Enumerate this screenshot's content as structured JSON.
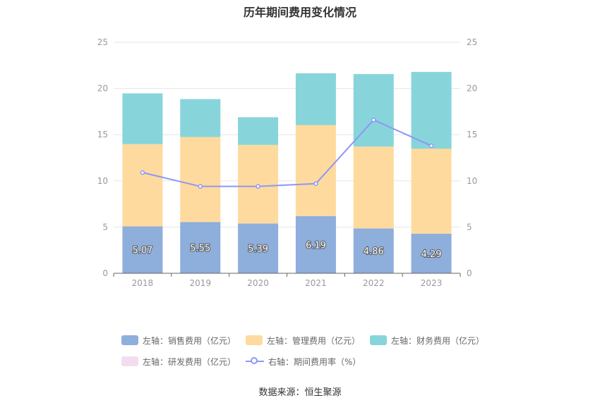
{
  "title": "历年期间费用变化情况",
  "source": "数据来源：恒生聚源",
  "chart_data": {
    "type": "bar",
    "stacked": true,
    "categories": [
      "2018",
      "2019",
      "2020",
      "2021",
      "2022",
      "2023"
    ],
    "left_axis": {
      "min": 0,
      "max": 25,
      "ticks": [
        "0",
        "5",
        "10",
        "15",
        "20",
        "25"
      ]
    },
    "right_axis": {
      "min": 0,
      "max": 25,
      "ticks": [
        "0",
        "5",
        "10",
        "15",
        "20",
        "25"
      ]
    },
    "grid": true,
    "series": [
      {
        "name": "左轴：销售费用（亿元）",
        "axis": "left",
        "kind": "bar",
        "color": "#8EAEDC",
        "values": [
          5.07,
          5.55,
          5.39,
          6.19,
          4.86,
          4.29
        ],
        "labels": [
          "5.07",
          "5.55",
          "5.39",
          "6.19",
          "4.86",
          "4.29"
        ]
      },
      {
        "name": "左轴：管理费用（亿元）",
        "axis": "left",
        "kind": "bar",
        "color": "#FFDA9E",
        "values": [
          8.9,
          9.2,
          8.5,
          9.85,
          8.85,
          9.2
        ]
      },
      {
        "name": "左轴：财务费用（亿元）",
        "axis": "left",
        "kind": "bar",
        "color": "#87D5DA",
        "values": [
          5.5,
          4.1,
          3.0,
          5.6,
          7.85,
          8.3
        ]
      },
      {
        "name": "左轴：研发费用（亿元）",
        "axis": "left",
        "kind": "bar",
        "color": "#F2DDF0",
        "values": [
          0,
          0,
          0,
          0,
          0,
          0
        ]
      },
      {
        "name": "右轴：期间费用率（%）",
        "axis": "right",
        "kind": "line",
        "color": "#8E97F5",
        "values": [
          10.9,
          9.4,
          9.4,
          9.7,
          16.6,
          13.8
        ]
      }
    ],
    "legend_position": "bottom"
  }
}
